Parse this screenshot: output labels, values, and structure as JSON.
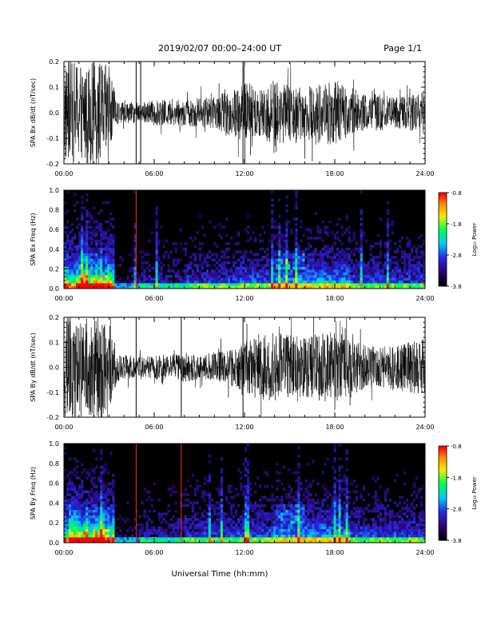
{
  "header": {
    "title": "2019/02/07  00:00–24:00 UT",
    "page": "Page 1/1"
  },
  "xlabel": "Universal Time (hh:mm)",
  "x_ticks": [
    "00:00",
    "06:00",
    "12:00",
    "18:00",
    "24:00"
  ],
  "colorbar": {
    "label": "Log₁₀ Power",
    "ticks": [
      "-0.8",
      "-1.8",
      "-2.8",
      "-3.8"
    ]
  },
  "chart_data": [
    {
      "type": "line",
      "title": "",
      "ylabel": "SPA Bx dB/dt (nT/sec)",
      "xlim": [
        0,
        24
      ],
      "ylim": [
        -0.2,
        0.2
      ],
      "y_ticks": [
        "0.2",
        "0.1",
        "0.0",
        "-0.1",
        "-0.2"
      ],
      "envelope": {
        "hours": [
          0,
          0.5,
          1,
          1.5,
          2,
          2.5,
          3,
          3.5,
          4,
          5,
          6,
          7,
          8,
          9,
          10,
          11,
          12,
          13,
          14,
          15,
          16,
          17,
          18,
          19,
          20,
          21,
          22,
          23,
          24
        ],
        "amplitude": [
          0.2,
          0.2,
          0.2,
          0.2,
          0.2,
          0.2,
          0.18,
          0.05,
          0.04,
          0.04,
          0.05,
          0.05,
          0.05,
          0.06,
          0.06,
          0.09,
          0.12,
          0.1,
          0.13,
          0.11,
          0.1,
          0.12,
          0.13,
          0.09,
          0.07,
          0.07,
          0.06,
          0.07,
          0.08
        ]
      },
      "spikes_hours": [
        4.8,
        5.1,
        11.9
      ]
    },
    {
      "type": "heatmap",
      "title": "",
      "ylabel": "SPA Bx Freq (Hz)",
      "xlim": [
        0,
        24
      ],
      "ylim": [
        0.0,
        1.0
      ],
      "y_ticks": [
        "1.0",
        "0.8",
        "0.6",
        "0.4",
        "0.2",
        "0.0"
      ],
      "zlim": [
        -3.8,
        -0.8
      ],
      "vertical_lines_hours": [
        4.8
      ]
    },
    {
      "type": "line",
      "title": "",
      "ylabel": "SPA By dB/dt (nT/sec)",
      "xlim": [
        0,
        24
      ],
      "ylim": [
        -0.2,
        0.2
      ],
      "y_ticks": [
        "0.2",
        "0.1",
        "0.0",
        "-0.1",
        "-0.2"
      ],
      "envelope": {
        "hours": [
          0,
          0.5,
          1,
          1.5,
          2,
          2.5,
          3,
          3.5,
          4,
          5,
          6,
          7,
          8,
          9,
          10,
          11,
          12,
          13,
          14,
          15,
          16,
          17,
          18,
          19,
          20,
          21,
          22,
          23,
          24
        ],
        "amplitude": [
          0.2,
          0.2,
          0.2,
          0.2,
          0.2,
          0.2,
          0.18,
          0.06,
          0.05,
          0.04,
          0.05,
          0.05,
          0.06,
          0.05,
          0.06,
          0.07,
          0.1,
          0.13,
          0.14,
          0.13,
          0.12,
          0.14,
          0.15,
          0.11,
          0.09,
          0.08,
          0.09,
          0.1,
          0.12
        ]
      },
      "spikes_hours": [
        4.8,
        7.8,
        11.9
      ]
    },
    {
      "type": "heatmap",
      "title": "",
      "ylabel": "SPA By Freq (Hz)",
      "xlim": [
        0,
        24
      ],
      "ylim": [
        0.0,
        1.0
      ],
      "y_ticks": [
        "1.0",
        "0.8",
        "0.6",
        "0.4",
        "0.2",
        "0.0"
      ],
      "zlim": [
        -3.8,
        -0.8
      ],
      "vertical_lines_hours": [
        4.8,
        7.8
      ]
    }
  ]
}
